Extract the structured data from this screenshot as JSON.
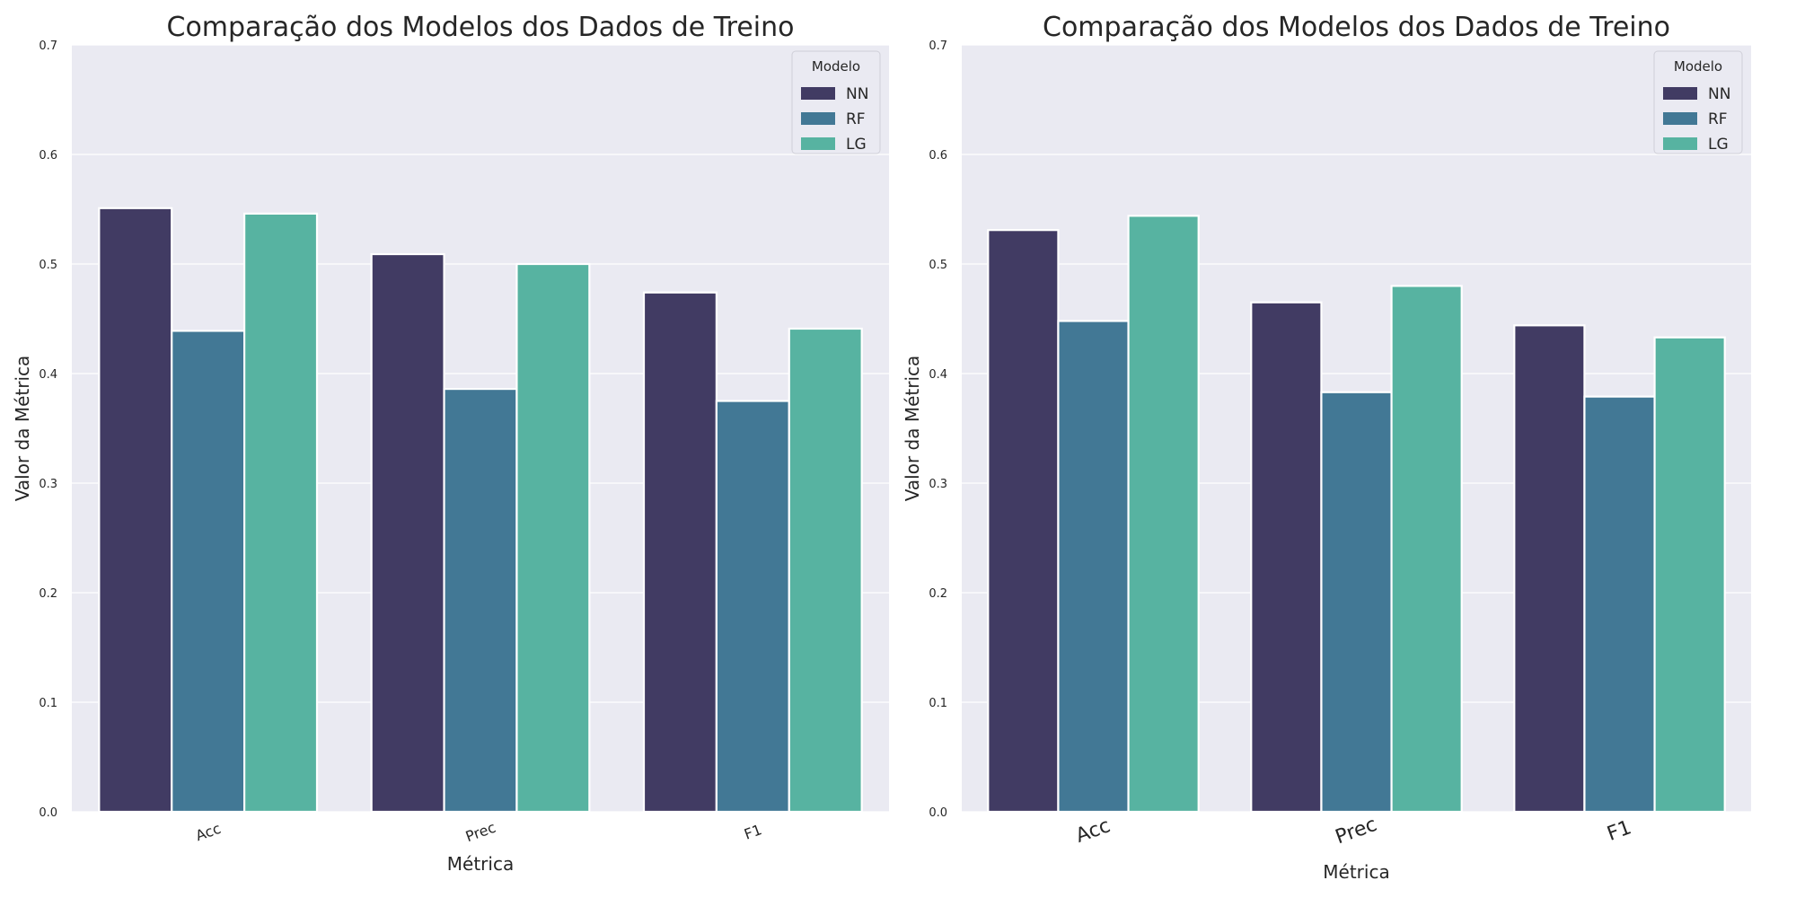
{
  "chart_data": [
    {
      "type": "bar",
      "title": "Comparação dos Modelos dos Dados de Treino",
      "xlabel": "Métrica",
      "ylabel": "Valor da Métrica",
      "categories": [
        "Acc",
        "Prec",
        "F1"
      ],
      "series": [
        {
          "name": "NN",
          "values": [
            0.551,
            0.509,
            0.474
          ],
          "color": "#413b63"
        },
        {
          "name": "RF",
          "values": [
            0.439,
            0.386,
            0.375
          ],
          "color": "#427895"
        },
        {
          "name": "LG",
          "values": [
            0.546,
            0.5,
            0.441
          ],
          "color": "#57b3a1"
        }
      ],
      "ylim": [
        0,
        0.7
      ],
      "yticks": [
        "0.0",
        "0.1",
        "0.2",
        "0.3",
        "0.4",
        "0.5",
        "0.6",
        "0.7"
      ],
      "grid": true,
      "legend": {
        "title": "Modelo",
        "position": "top-right"
      }
    },
    {
      "type": "bar",
      "title": "Comparação dos Modelos dos Dados de Treino",
      "xlabel": "Métrica",
      "ylabel": "Valor da Métrica",
      "categories": [
        "Acc",
        "Prec",
        "F1"
      ],
      "series": [
        {
          "name": "NN",
          "values": [
            0.531,
            0.465,
            0.444
          ],
          "color": "#413b63"
        },
        {
          "name": "RF",
          "values": [
            0.448,
            0.383,
            0.379
          ],
          "color": "#427895"
        },
        {
          "name": "LG",
          "values": [
            0.544,
            0.48,
            0.433
          ],
          "color": "#57b3a1"
        }
      ],
      "ylim": [
        0,
        0.7
      ],
      "yticks": [
        "0.0",
        "0.1",
        "0.2",
        "0.3",
        "0.4",
        "0.5",
        "0.6",
        "0.7"
      ],
      "grid": true,
      "legend": {
        "title": "Modelo",
        "position": "top-right"
      }
    }
  ],
  "style": {
    "plot_background": "#eaeaf2",
    "grid_color": "#ffffff",
    "text_color": "#262626"
  }
}
